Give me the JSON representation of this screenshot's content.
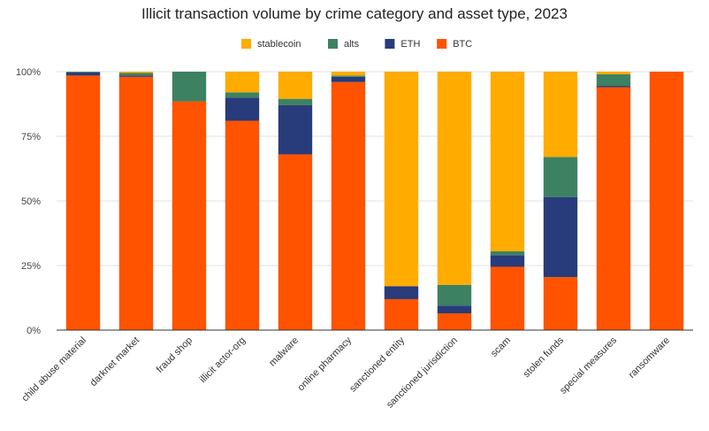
{
  "chart_data": {
    "type": "bar",
    "stacked": true,
    "percent": true,
    "title": "Illicit transaction volume by crime category and asset type, 2023",
    "xlabel": "",
    "ylabel": "",
    "ylim": [
      0,
      100
    ],
    "yticks": [
      "0%",
      "25%",
      "50%",
      "75%",
      "100%"
    ],
    "grid": true,
    "legend_position": "top",
    "categories": [
      "child abuse material",
      "darknet market",
      "fraud shop",
      "illicit actor-org",
      "malware",
      "online pharmacy",
      "sanctioned entity",
      "sanctioned jurisdiction",
      "scam",
      "stolen funds",
      "special measures",
      "ransomware"
    ],
    "series": [
      {
        "name": "BTC",
        "color": "#ff5300",
        "values": [
          98.5,
          98,
          88.5,
          81,
          68,
          96,
          12,
          6.5,
          24.5,
          20.5,
          94,
          100
        ]
      },
      {
        "name": "ETH",
        "color": "#283b7a",
        "values": [
          1.2,
          0.5,
          0,
          9,
          19,
          2,
          5,
          3,
          4.5,
          31,
          0.5,
          0
        ]
      },
      {
        "name": "alts",
        "color": "#3d8163",
        "values": [
          0.3,
          1,
          11.5,
          2,
          2.5,
          0.5,
          0,
          8,
          1.5,
          15.5,
          4.5,
          0
        ]
      },
      {
        "name": "stablecoin",
        "color": "#ffab00",
        "values": [
          0,
          0.5,
          0,
          8,
          10.5,
          1.5,
          83,
          82.5,
          69.5,
          33,
          1,
          0
        ]
      }
    ],
    "legend_order": [
      "stablecoin",
      "alts",
      "ETH",
      "BTC"
    ]
  }
}
